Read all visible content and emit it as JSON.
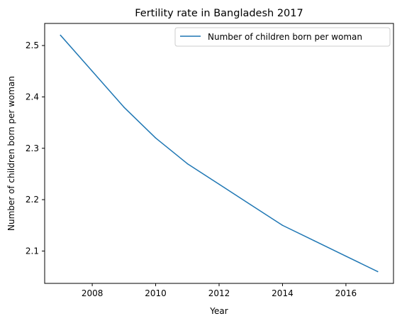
{
  "chart_data": {
    "type": "line",
    "title": "Fertility rate in Bangladesh 2017",
    "xlabel": "Year",
    "ylabel": "Number of children born per woman",
    "xlim": [
      2006.5,
      2017.5
    ],
    "ylim": [
      2.037,
      2.543
    ],
    "x_ticks": [
      2008,
      2010,
      2012,
      2014,
      2016
    ],
    "y_ticks": [
      2.1,
      2.2,
      2.3,
      2.4,
      2.5
    ],
    "x_tick_labels": [
      "2008",
      "2010",
      "2012",
      "2014",
      "2016"
    ],
    "y_tick_labels": [
      "2.1",
      "2.2",
      "2.3",
      "2.4",
      "2.5"
    ],
    "grid": false,
    "legend_position": "upper right",
    "series": [
      {
        "name": "Number of children born per woman",
        "color": "#1f77b4",
        "x": [
          2007,
          2008,
          2009,
          2010,
          2011,
          2012,
          2013,
          2014,
          2015,
          2016,
          2017
        ],
        "y": [
          2.52,
          2.45,
          2.38,
          2.32,
          2.27,
          2.23,
          2.19,
          2.15,
          2.12,
          2.09,
          2.06
        ]
      }
    ]
  }
}
